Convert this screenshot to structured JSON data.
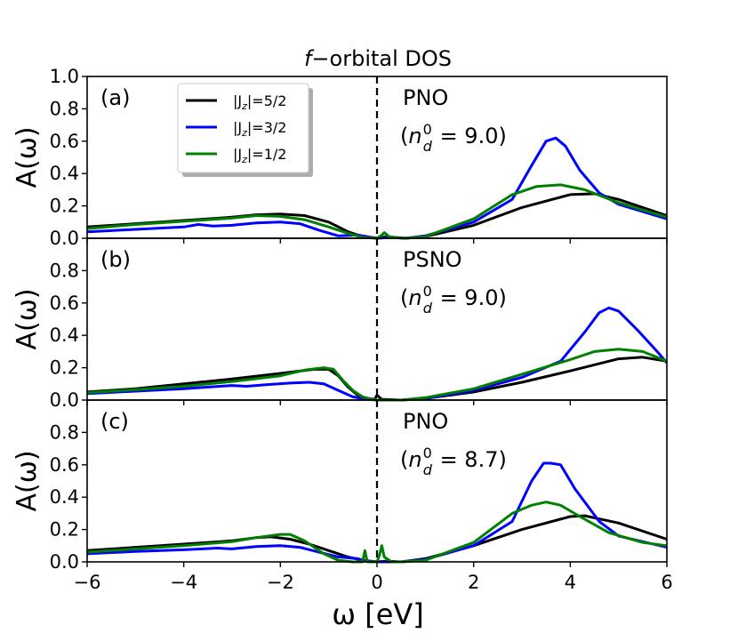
{
  "chart_data": {
    "type": "line",
    "title": "f−orbital DOS",
    "title_italic": "f",
    "title_rest": "−orbital DOS",
    "xlabel": "ω [eV]",
    "ylabel": "A(ω)",
    "xlim": [
      -6,
      6
    ],
    "ylim": [
      0,
      1.0
    ],
    "xticks": [
      -6,
      -4,
      -2,
      0,
      2,
      4,
      6
    ],
    "xtick_labels": [
      "−6",
      "−4",
      "−2",
      "0",
      "2",
      "4",
      "6"
    ],
    "yticks_top": [
      0.0,
      0.2,
      0.4,
      0.6,
      0.8,
      1.0
    ],
    "yticks_top_labels": [
      "0.0",
      "0.2",
      "0.4",
      "0.6",
      "0.8",
      "1.0"
    ],
    "yticks": [
      0.0,
      0.2,
      0.4,
      0.6,
      0.8
    ],
    "yticks_labels": [
      "0.0",
      "0.2",
      "0.4",
      "0.6",
      "0.8"
    ],
    "fermi_line_x": 0,
    "legend": {
      "placement": "upper-left",
      "entries": [
        {
          "name": "|J_z|=5/2",
          "prefix": "|J",
          "sub": "z",
          "suffix": "|=5/2",
          "color": "#000000"
        },
        {
          "name": "|J_z|=3/2",
          "prefix": "|J",
          "sub": "z",
          "suffix": "|=3/2",
          "color": "#0000ff"
        },
        {
          "name": "|J_z|=1/2",
          "prefix": "|J",
          "sub": "z",
          "suffix": "|=1/2",
          "color": "#008000"
        }
      ]
    },
    "panels": [
      {
        "label": "(a)",
        "material": "PNO",
        "nd_value": "9.0",
        "series": [
          {
            "name": "|J_z|=5/2",
            "color": "#000000",
            "points": [
              [
                -6,
                0.07
              ],
              [
                -5,
                0.09
              ],
              [
                -4,
                0.11
              ],
              [
                -3,
                0.13
              ],
              [
                -2.5,
                0.145
              ],
              [
                -2,
                0.15
              ],
              [
                -1.5,
                0.14
              ],
              [
                -1,
                0.1
              ],
              [
                -0.6,
                0.04
              ],
              [
                -0.3,
                0.01
              ],
              [
                0,
                0.0
              ],
              [
                0.2,
                0.01
              ],
              [
                0.4,
                0.005
              ],
              [
                0.6,
                0.0
              ],
              [
                1,
                0.01
              ],
              [
                2,
                0.08
              ],
              [
                3,
                0.19
              ],
              [
                4,
                0.27
              ],
              [
                4.5,
                0.275
              ],
              [
                5,
                0.24
              ],
              [
                6,
                0.14
              ]
            ]
          },
          {
            "name": "|J_z|=3/2",
            "color": "#0000ff",
            "points": [
              [
                -6,
                0.04
              ],
              [
                -5,
                0.055
              ],
              [
                -4,
                0.07
              ],
              [
                -3.7,
                0.085
              ],
              [
                -3.4,
                0.075
              ],
              [
                -3,
                0.08
              ],
              [
                -2.5,
                0.095
              ],
              [
                -2,
                0.1
              ],
              [
                -1.6,
                0.09
              ],
              [
                -1.2,
                0.05
              ],
              [
                -0.8,
                0.015
              ],
              [
                -0.4,
                0.02
              ],
              [
                -0.2,
                0.01
              ],
              [
                0,
                0.0
              ],
              [
                0.3,
                0.005
              ],
              [
                0.6,
                0.0
              ],
              [
                1,
                0.015
              ],
              [
                2,
                0.1
              ],
              [
                2.8,
                0.24
              ],
              [
                3.2,
                0.45
              ],
              [
                3.5,
                0.6
              ],
              [
                3.7,
                0.62
              ],
              [
                3.9,
                0.57
              ],
              [
                4.2,
                0.42
              ],
              [
                4.6,
                0.28
              ],
              [
                5,
                0.21
              ],
              [
                6,
                0.12
              ]
            ]
          },
          {
            "name": "|J_z|=1/2",
            "color": "#008000",
            "points": [
              [
                -6,
                0.06
              ],
              [
                -5,
                0.085
              ],
              [
                -4,
                0.105
              ],
              [
                -3,
                0.125
              ],
              [
                -2.5,
                0.14
              ],
              [
                -2,
                0.135
              ],
              [
                -1.5,
                0.115
              ],
              [
                -1,
                0.07
              ],
              [
                -0.6,
                0.03
              ],
              [
                -0.3,
                0.005
              ],
              [
                0,
                0.0
              ],
              [
                0.1,
                0.02
              ],
              [
                0.15,
                0.035
              ],
              [
                0.25,
                0.01
              ],
              [
                0.5,
                0.0
              ],
              [
                1,
                0.01
              ],
              [
                2,
                0.12
              ],
              [
                2.8,
                0.27
              ],
              [
                3.3,
                0.32
              ],
              [
                3.8,
                0.33
              ],
              [
                4.3,
                0.3
              ],
              [
                5,
                0.22
              ],
              [
                6,
                0.13
              ]
            ]
          }
        ]
      },
      {
        "label": "(b)",
        "material": "PSNO",
        "nd_value": "9.0",
        "series": [
          {
            "name": "|J_z|=5/2",
            "color": "#000000",
            "points": [
              [
                -6,
                0.05
              ],
              [
                -5,
                0.07
              ],
              [
                -4,
                0.1
              ],
              [
                -3,
                0.13
              ],
              [
                -2,
                0.165
              ],
              [
                -1.3,
                0.19
              ],
              [
                -1,
                0.19
              ],
              [
                -0.8,
                0.15
              ],
              [
                -0.6,
                0.08
              ],
              [
                -0.4,
                0.03
              ],
              [
                -0.2,
                0.01
              ],
              [
                -0.05,
                0.005
              ],
              [
                0,
                0.03
              ],
              [
                0.1,
                0.005
              ],
              [
                0.5,
                0.0
              ],
              [
                1,
                0.01
              ],
              [
                2,
                0.05
              ],
              [
                3,
                0.11
              ],
              [
                4,
                0.18
              ],
              [
                5,
                0.255
              ],
              [
                5.5,
                0.265
              ],
              [
                6,
                0.24
              ]
            ]
          },
          {
            "name": "|J_z|=3/2",
            "color": "#0000ff",
            "points": [
              [
                -6,
                0.04
              ],
              [
                -5,
                0.055
              ],
              [
                -4,
                0.07
              ],
              [
                -3.5,
                0.08
              ],
              [
                -3,
                0.09
              ],
              [
                -2.7,
                0.085
              ],
              [
                -2.3,
                0.095
              ],
              [
                -1.8,
                0.105
              ],
              [
                -1.4,
                0.11
              ],
              [
                -1.1,
                0.1
              ],
              [
                -0.8,
                0.06
              ],
              [
                -0.5,
                0.02
              ],
              [
                -0.2,
                0.005
              ],
              [
                0,
                0.0
              ],
              [
                0.5,
                0.0
              ],
              [
                1,
                0.01
              ],
              [
                2,
                0.06
              ],
              [
                3,
                0.14
              ],
              [
                3.8,
                0.24
              ],
              [
                4.3,
                0.42
              ],
              [
                4.6,
                0.54
              ],
              [
                4.8,
                0.57
              ],
              [
                5,
                0.55
              ],
              [
                5.4,
                0.43
              ],
              [
                5.8,
                0.3
              ],
              [
                6,
                0.23
              ]
            ]
          },
          {
            "name": "|J_z|=1/2",
            "color": "#008000",
            "points": [
              [
                -6,
                0.045
              ],
              [
                -5,
                0.065
              ],
              [
                -4,
                0.085
              ],
              [
                -3,
                0.115
              ],
              [
                -2,
                0.15
              ],
              [
                -1.5,
                0.185
              ],
              [
                -1.1,
                0.2
              ],
              [
                -0.9,
                0.19
              ],
              [
                -0.7,
                0.12
              ],
              [
                -0.5,
                0.06
              ],
              [
                -0.3,
                0.02
              ],
              [
                -0.1,
                0.005
              ],
              [
                0,
                0.0
              ],
              [
                0.5,
                0.0
              ],
              [
                1,
                0.015
              ],
              [
                2,
                0.07
              ],
              [
                3,
                0.16
              ],
              [
                4,
                0.25
              ],
              [
                4.5,
                0.3
              ],
              [
                5,
                0.315
              ],
              [
                5.5,
                0.3
              ],
              [
                6,
                0.24
              ]
            ]
          }
        ]
      },
      {
        "label": "(c)",
        "material": "PNO",
        "nd_value": "8.7",
        "series": [
          {
            "name": "|J_z|=5/2",
            "color": "#000000",
            "points": [
              [
                -6,
                0.07
              ],
              [
                -5,
                0.09
              ],
              [
                -4,
                0.11
              ],
              [
                -3,
                0.13
              ],
              [
                -2.5,
                0.15
              ],
              [
                -2.2,
                0.155
              ],
              [
                -1.8,
                0.14
              ],
              [
                -1.4,
                0.11
              ],
              [
                -1,
                0.07
              ],
              [
                -0.6,
                0.03
              ],
              [
                -0.3,
                0.01
              ],
              [
                0,
                0.0
              ],
              [
                0.2,
                0.005
              ],
              [
                0.5,
                0.0
              ],
              [
                1,
                0.02
              ],
              [
                2,
                0.1
              ],
              [
                3,
                0.2
              ],
              [
                4,
                0.28
              ],
              [
                4.3,
                0.285
              ],
              [
                5,
                0.24
              ],
              [
                6,
                0.14
              ]
            ]
          },
          {
            "name": "|J_z|=3/2",
            "color": "#0000ff",
            "points": [
              [
                -6,
                0.05
              ],
              [
                -5,
                0.065
              ],
              [
                -4,
                0.075
              ],
              [
                -3.3,
                0.085
              ],
              [
                -3,
                0.08
              ],
              [
                -2.5,
                0.095
              ],
              [
                -2,
                0.1
              ],
              [
                -1.6,
                0.09
              ],
              [
                -1.2,
                0.06
              ],
              [
                -0.8,
                0.03
              ],
              [
                -0.4,
                0.02
              ],
              [
                -0.2,
                0.005
              ],
              [
                0,
                0.0
              ],
              [
                0.5,
                0.0
              ],
              [
                1,
                0.015
              ],
              [
                2,
                0.1
              ],
              [
                2.8,
                0.25
              ],
              [
                3.2,
                0.5
              ],
              [
                3.45,
                0.61
              ],
              [
                3.6,
                0.61
              ],
              [
                3.8,
                0.6
              ],
              [
                4.1,
                0.45
              ],
              [
                4.6,
                0.25
              ],
              [
                5,
                0.16
              ],
              [
                6,
                0.09
              ]
            ]
          },
          {
            "name": "|J_z|=1/2",
            "color": "#008000",
            "points": [
              [
                -6,
                0.06
              ],
              [
                -5,
                0.08
              ],
              [
                -4,
                0.1
              ],
              [
                -3,
                0.125
              ],
              [
                -2.5,
                0.15
              ],
              [
                -2,
                0.17
              ],
              [
                -1.8,
                0.17
              ],
              [
                -1.5,
                0.13
              ],
              [
                -1.1,
                0.05
              ],
              [
                -0.8,
                0.01
              ],
              [
                -0.5,
                0.0
              ],
              [
                -0.3,
                0.0
              ],
              [
                -0.25,
                0.07
              ],
              [
                -0.2,
                0.0
              ],
              [
                0,
                0.0
              ],
              [
                0.05,
                0.04
              ],
              [
                0.1,
                0.1
              ],
              [
                0.15,
                0.03
              ],
              [
                0.3,
                0.0
              ],
              [
                0.5,
                0.0
              ],
              [
                1,
                0.01
              ],
              [
                2,
                0.12
              ],
              [
                2.8,
                0.3
              ],
              [
                3.2,
                0.35
              ],
              [
                3.5,
                0.37
              ],
              [
                3.8,
                0.35
              ],
              [
                4.2,
                0.28
              ],
              [
                4.8,
                0.18
              ],
              [
                5.5,
                0.12
              ],
              [
                6,
                0.1
              ]
            ]
          }
        ]
      }
    ]
  }
}
